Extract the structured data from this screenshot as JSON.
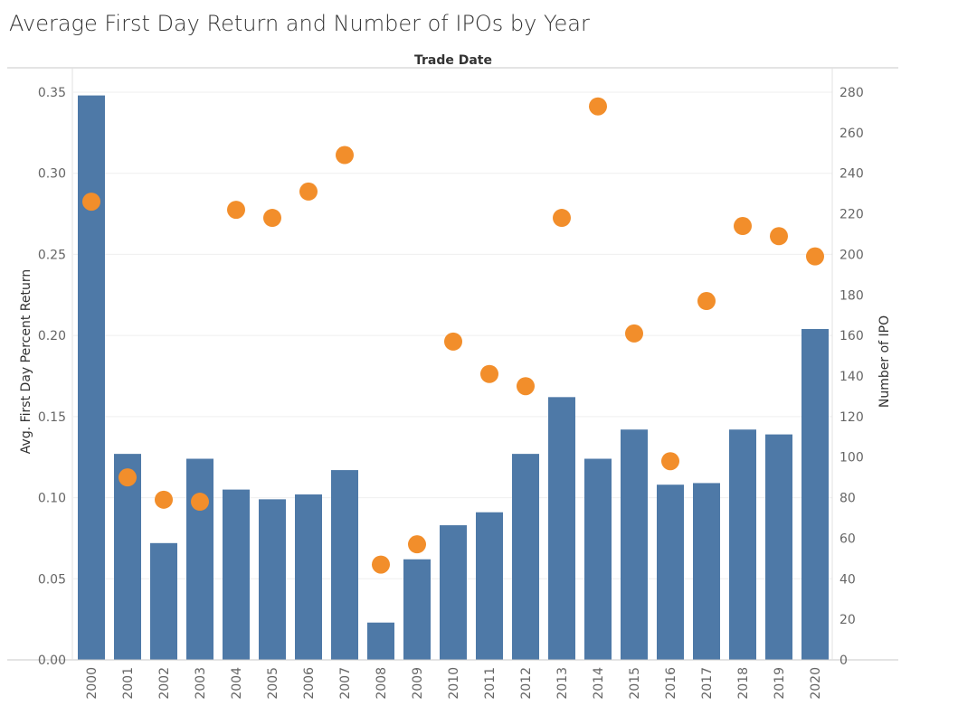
{
  "chart_data": {
    "type": "bar",
    "title": "Average First Day Return and Number of IPOs by Year",
    "column_header": "Trade Date",
    "categories": [
      "2000",
      "2001",
      "2002",
      "2003",
      "2004",
      "2005",
      "2006",
      "2007",
      "2008",
      "2009",
      "2010",
      "2011",
      "2012",
      "2013",
      "2014",
      "2015",
      "2016",
      "2017",
      "2018",
      "2019",
      "2020"
    ],
    "y_left": {
      "label": "Avg. First Day Percent Return",
      "range": [
        0,
        0.35
      ],
      "ticks": [
        "0.00",
        "0.05",
        "0.10",
        "0.15",
        "0.20",
        "0.25",
        "0.30",
        "0.35"
      ]
    },
    "y_right": {
      "label": "Number of IPO",
      "range": [
        0,
        280
      ],
      "ticks": [
        "0",
        "20",
        "40",
        "60",
        "80",
        "100",
        "120",
        "140",
        "160",
        "180",
        "200",
        "220",
        "240",
        "260",
        "280"
      ]
    },
    "series": [
      {
        "kind": "bar",
        "axis": "left",
        "color": "#4e79a7",
        "values": [
          0.348,
          0.127,
          0.072,
          0.124,
          0.105,
          0.099,
          0.102,
          0.117,
          0.023,
          0.062,
          0.083,
          0.091,
          0.127,
          0.162,
          0.124,
          0.142,
          0.108,
          0.109,
          0.142,
          0.139,
          0.204
        ]
      },
      {
        "kind": "scatter",
        "axis": "right",
        "color": "#f28e2b",
        "values": [
          226,
          90,
          79,
          78,
          222,
          218,
          231,
          249,
          47,
          57,
          157,
          141,
          135,
          218,
          273,
          161,
          98,
          177,
          214,
          209,
          199
        ]
      }
    ],
    "grid": true
  }
}
